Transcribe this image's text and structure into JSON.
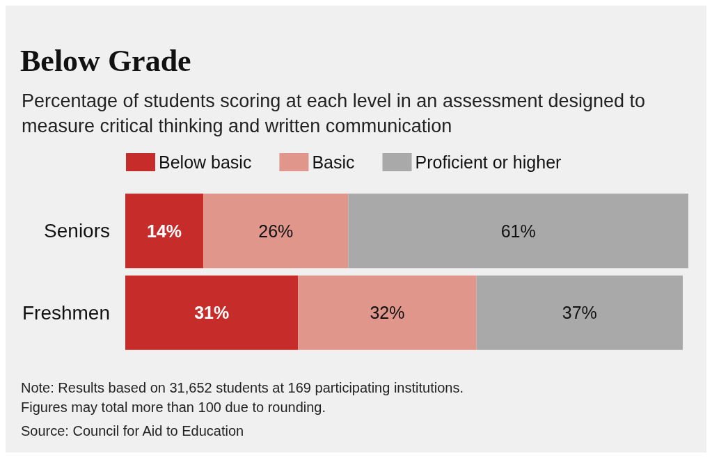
{
  "chart_data": {
    "type": "bar",
    "orientation": "horizontal",
    "stacked": true,
    "title": "Below Grade",
    "subtitle": "Percentage of students scoring at each level in an assessment designed to measure critical thinking and written communication",
    "categories": [
      "Seniors",
      "Freshmen"
    ],
    "series": [
      {
        "name": "Below basic",
        "color": "#c62d2a",
        "values": [
          14,
          31
        ],
        "value_labels": [
          "14%",
          "31%"
        ]
      },
      {
        "name": "Basic",
        "color": "#e0968a",
        "values": [
          26,
          32
        ],
        "value_labels": [
          "26%",
          "32%"
        ]
      },
      {
        "name": "Proficient or higher",
        "color": "#a9a9a9",
        "values": [
          61,
          37
        ],
        "value_labels": [
          "61%",
          "37%"
        ]
      }
    ],
    "legend": "top left",
    "annotations": [
      "Note: Results based on 31,652 students at 169 participating institutions.\nFigures may total more than 100 due to rounding.",
      "Source: Council for Aid to Education"
    ]
  }
}
